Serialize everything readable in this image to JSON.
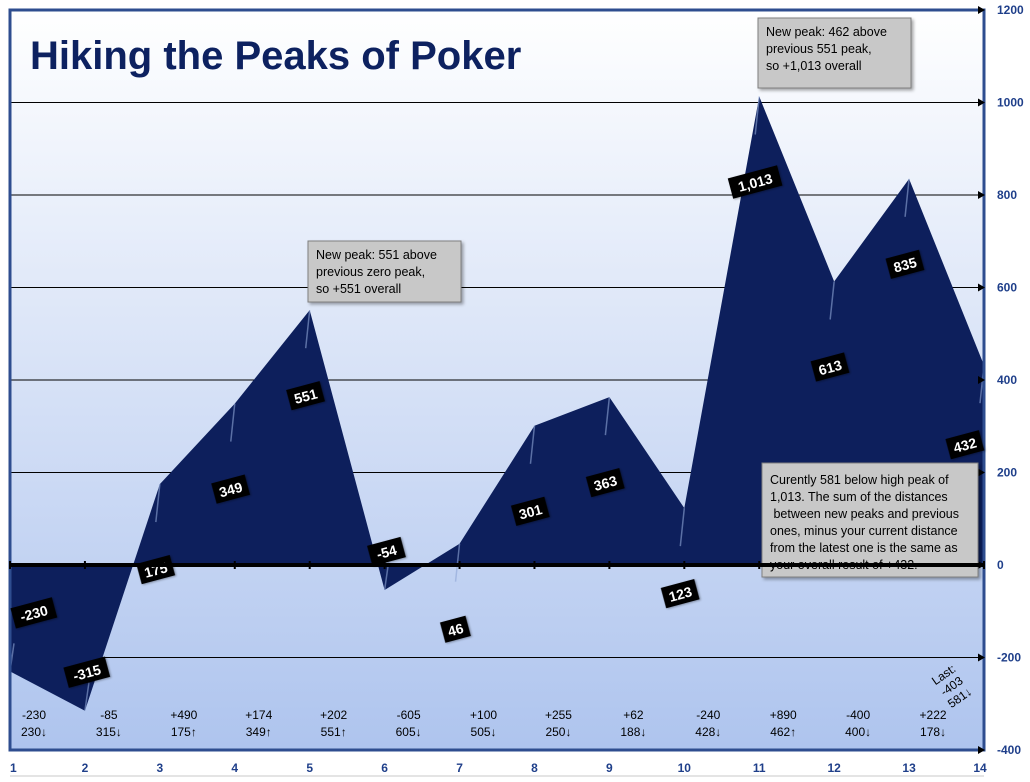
{
  "chart_data": {
    "type": "area",
    "title": "Hiking the Peaks of Poker",
    "x": [
      1,
      2,
      3,
      4,
      5,
      6,
      7,
      8,
      9,
      10,
      11,
      12,
      13,
      14
    ],
    "series": [
      {
        "values": [
          -230,
          -315,
          175,
          349,
          551,
          -54,
          46,
          301,
          363,
          123,
          1013,
          613,
          835,
          432
        ],
        "labels": [
          "-230",
          "-315",
          "175",
          "349",
          "551",
          "-54",
          "46",
          "301",
          "363",
          "123",
          "1,013",
          "613",
          "835",
          "432"
        ]
      }
    ],
    "ylim": [
      -400,
      1200
    ],
    "yticks": [
      -400,
      -200,
      0,
      200,
      400,
      600,
      800,
      1000,
      1200
    ],
    "ytick_labels": [
      "-400",
      "-200",
      "0",
      "200",
      "400",
      "600",
      "800",
      "1000",
      "1200"
    ],
    "xtick_labels": [
      "1",
      "2",
      "3",
      "4",
      "5",
      "6",
      "7",
      "8",
      "9",
      "10",
      "11",
      "12",
      "13",
      "14"
    ],
    "grid": true,
    "changes": [
      {
        "line1": "-230",
        "line2": "230↓"
      },
      {
        "line1": "-85",
        "line2": "315↓"
      },
      {
        "line1": "+490",
        "line2": "175↑"
      },
      {
        "line1": "+174",
        "line2": "349↑"
      },
      {
        "line1": "+202",
        "line2": "551↑"
      },
      {
        "line1": "-605",
        "line2": "605↓"
      },
      {
        "line1": "+100",
        "line2": "505↓"
      },
      {
        "line1": "+255",
        "line2": "250↓"
      },
      {
        "line1": "+62",
        "line2": "188↓"
      },
      {
        "line1": "-240",
        "line2": "428↓"
      },
      {
        "line1": "+890",
        "line2": "462↑"
      },
      {
        "line1": "-400",
        "line2": "400↓"
      },
      {
        "line1": "+222",
        "line2": "178↓"
      }
    ],
    "last_change": {
      "line1": "Last:",
      "line2": "-403",
      "line3": "581↓"
    },
    "annotations": [
      {
        "lines": [
          "New peak:  462 above",
          "previous 551 peak,",
          "so +1,013 overall"
        ]
      },
      {
        "lines": [
          "New peak: 551 above",
          "previous zero peak,",
          "so +551 overall"
        ]
      },
      {
        "lines": [
          "Curently 581 below high peak of",
          "1,013. The sum of the distances",
          " between new peaks and previous",
          "ones, minus your current distance",
          "from the latest one is the same as",
          "your overall result of +432."
        ]
      }
    ],
    "colors": {
      "area": "#0d1f5c",
      "background_top": "#ffffff",
      "background_bottom": "#aec4ee",
      "frame": "#2e4d8f",
      "annotation_fill": "#c8c8c8",
      "label_box": "#000000"
    }
  }
}
